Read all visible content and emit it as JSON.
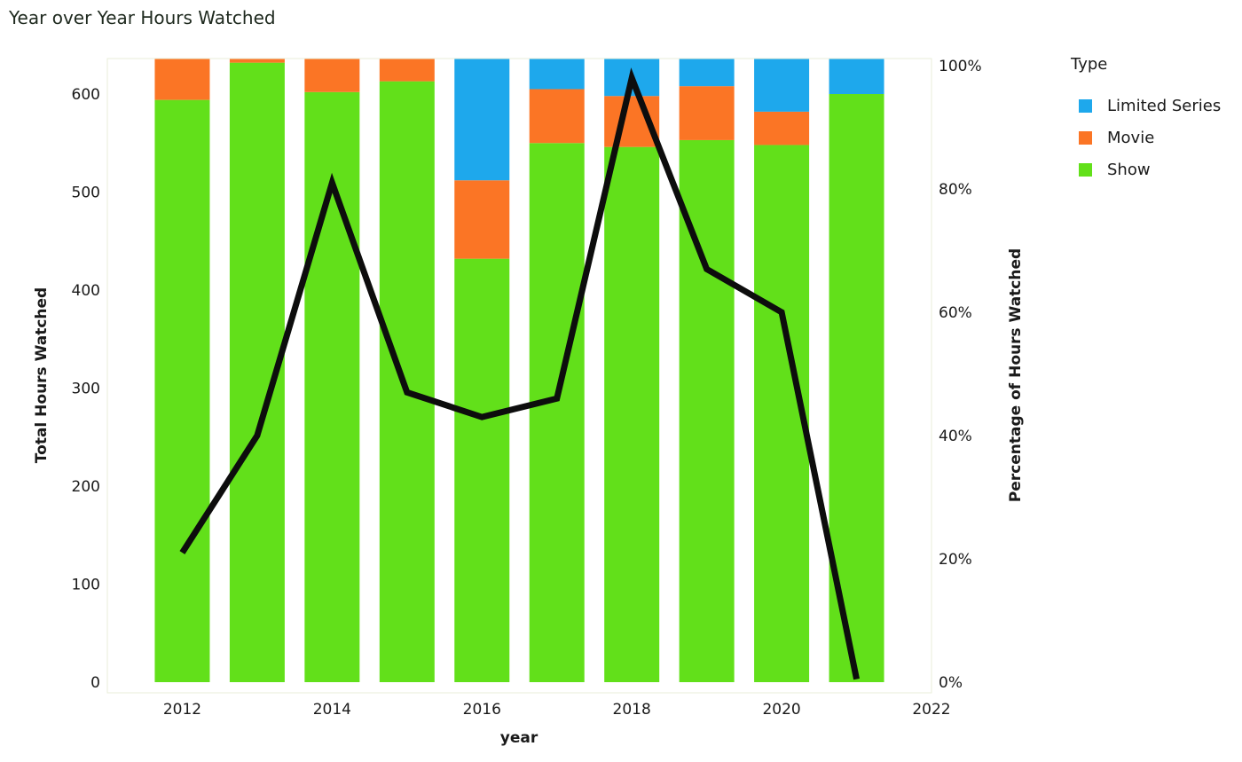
{
  "chart_data": {
    "type": "bar",
    "title": "Year over Year Hours Watched",
    "xlabel": "year",
    "ylabel": "Total Hours Watched",
    "y2label": "Percentage of Hours Watched",
    "x": [
      2012,
      2013,
      2014,
      2015,
      2016,
      2017,
      2018,
      2019,
      2020,
      2021
    ],
    "xlim": [
      2011,
      2022
    ],
    "x_ticks": [
      "2012",
      "2014",
      "2016",
      "2018",
      "2020",
      "2022"
    ],
    "ylim": [
      0,
      640
    ],
    "y_ticks": [
      "0",
      "100",
      "200",
      "300",
      "400",
      "500",
      "600"
    ],
    "y2lim": [
      0,
      1.0
    ],
    "y2_ticks": [
      "0%",
      "20%",
      "40%",
      "60%",
      "80%",
      "100%"
    ],
    "stacked": true,
    "grid": false,
    "legend": {
      "title": "Type",
      "placement": "right"
    },
    "series": [
      {
        "name": "Show",
        "color": "#62e01a",
        "values": [
          594,
          632,
          602,
          613,
          432,
          550,
          546,
          553,
          548,
          600
        ]
      },
      {
        "name": "Movie",
        "color": "#fb7525",
        "values": [
          46,
          8,
          38,
          27,
          80,
          55,
          52,
          55,
          34,
          0
        ]
      },
      {
        "name": "Limited Series",
        "color": "#1ea8ec",
        "values": [
          0,
          0,
          0,
          0,
          128,
          35,
          42,
          32,
          58,
          40
        ]
      }
    ],
    "line": {
      "name": "Percentage of Hours Watched",
      "axis": "right",
      "color": "#0d0d0d",
      "values": [
        0.21,
        0.4,
        0.81,
        0.47,
        0.43,
        0.46,
        0.98,
        0.67,
        0.6,
        0.005
      ]
    }
  }
}
